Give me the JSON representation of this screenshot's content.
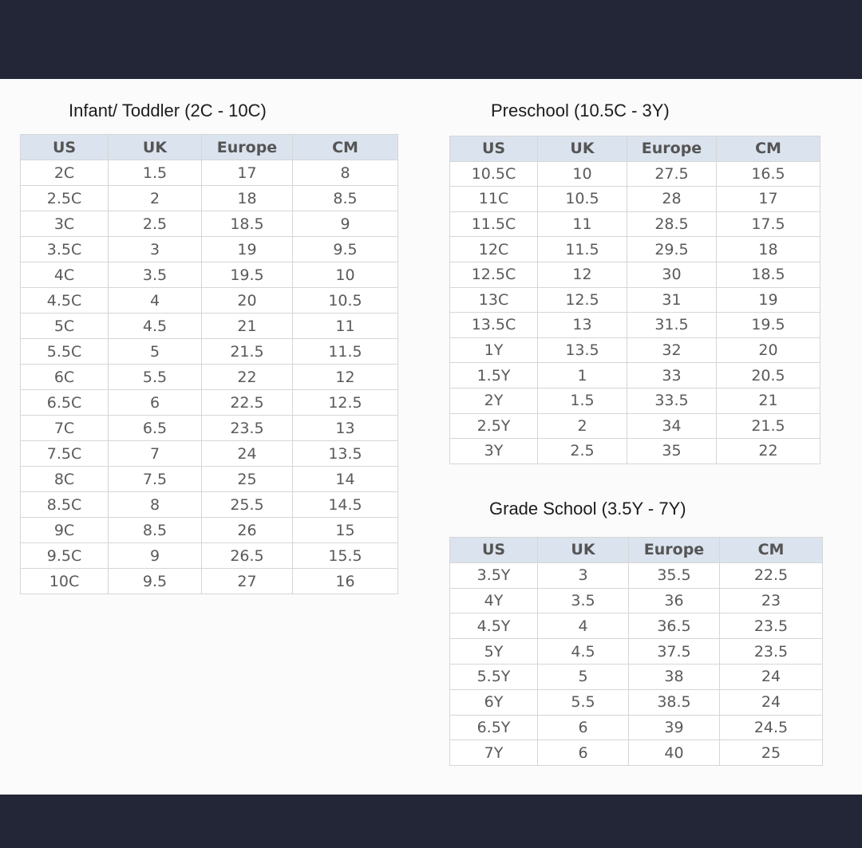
{
  "sections": [
    {
      "title": "Infant/ Toddler (2C - 10C)",
      "headers": [
        "US",
        "UK",
        "Europe",
        "CM"
      ],
      "rows": [
        [
          "2C",
          "1.5",
          "17",
          "8"
        ],
        [
          "2.5C",
          "2",
          "18",
          "8.5"
        ],
        [
          "3C",
          "2.5",
          "18.5",
          "9"
        ],
        [
          "3.5C",
          "3",
          "19",
          "9.5"
        ],
        [
          "4C",
          "3.5",
          "19.5",
          "10"
        ],
        [
          "4.5C",
          "4",
          "20",
          "10.5"
        ],
        [
          "5C",
          "4.5",
          "21",
          "11"
        ],
        [
          "5.5C",
          "5",
          "21.5",
          "11.5"
        ],
        [
          "6C",
          "5.5",
          "22",
          "12"
        ],
        [
          "6.5C",
          "6",
          "22.5",
          "12.5"
        ],
        [
          "7C",
          "6.5",
          "23.5",
          "13"
        ],
        [
          "7.5C",
          "7",
          "24",
          "13.5"
        ],
        [
          "8C",
          "7.5",
          "25",
          "14"
        ],
        [
          "8.5C",
          "8",
          "25.5",
          "14.5"
        ],
        [
          "9C",
          "8.5",
          "26",
          "15"
        ],
        [
          "9.5C",
          "9",
          "26.5",
          "15.5"
        ],
        [
          "10C",
          "9.5",
          "27",
          "16"
        ]
      ]
    },
    {
      "title": "Preschool (10.5C - 3Y)",
      "headers": [
        "US",
        "UK",
        "Europe",
        "CM"
      ],
      "rows": [
        [
          "10.5C",
          "10",
          "27.5",
          "16.5"
        ],
        [
          "11C",
          "10.5",
          "28",
          "17"
        ],
        [
          "11.5C",
          "11",
          "28.5",
          "17.5"
        ],
        [
          "12C",
          "11.5",
          "29.5",
          "18"
        ],
        [
          "12.5C",
          "12",
          "30",
          "18.5"
        ],
        [
          "13C",
          "12.5",
          "31",
          "19"
        ],
        [
          "13.5C",
          "13",
          "31.5",
          "19.5"
        ],
        [
          "1Y",
          "13.5",
          "32",
          "20"
        ],
        [
          "1.5Y",
          "1",
          "33",
          "20.5"
        ],
        [
          "2Y",
          "1.5",
          "33.5",
          "21"
        ],
        [
          "2.5Y",
          "2",
          "34",
          "21.5"
        ],
        [
          "3Y",
          "2.5",
          "35",
          "22"
        ]
      ]
    },
    {
      "title": "Grade School (3.5Y - 7Y)",
      "headers": [
        "US",
        "UK",
        "Europe",
        "CM"
      ],
      "rows": [
        [
          "3.5Y",
          "3",
          "35.5",
          "22.5"
        ],
        [
          "4Y",
          "3.5",
          "36",
          "23"
        ],
        [
          "4.5Y",
          "4",
          "36.5",
          "23.5"
        ],
        [
          "5Y",
          "4.5",
          "37.5",
          "23.5"
        ],
        [
          "5.5Y",
          "5",
          "38",
          "24"
        ],
        [
          "6Y",
          "5.5",
          "38.5",
          "24"
        ],
        [
          "6.5Y",
          "6",
          "39",
          "24.5"
        ],
        [
          "7Y",
          "6",
          "40",
          "25"
        ]
      ]
    }
  ]
}
